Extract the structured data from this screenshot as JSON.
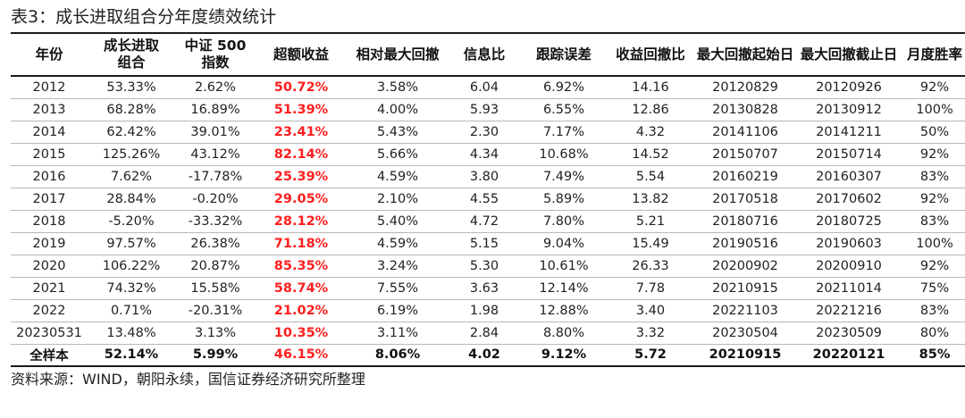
{
  "title": "表3：成长进取组合分年度绩效统计",
  "headers": [
    [
      "年份"
    ],
    [
      "成长进取",
      "组合"
    ],
    [
      "中证 500",
      "指数"
    ],
    [
      "超额收益"
    ],
    [
      "相对最大回撤"
    ],
    [
      "信息比"
    ],
    [
      "跟踪误差"
    ],
    [
      "收益回撤比"
    ],
    [
      "最大回撤起始日"
    ],
    [
      "最大回撤截止日"
    ],
    [
      "月度胜率"
    ]
  ],
  "rows": [
    [
      "2012",
      "53.33%",
      "2.62%",
      "50.72%",
      "3.58%",
      "6.04",
      "6.92%",
      "14.16",
      "20120829",
      "20120926",
      "92%"
    ],
    [
      "2013",
      "68.28%",
      "16.89%",
      "51.39%",
      "4.00%",
      "5.93",
      "6.55%",
      "12.86",
      "20130828",
      "20130912",
      "100%"
    ],
    [
      "2014",
      "62.42%",
      "39.01%",
      "23.41%",
      "5.43%",
      "2.30",
      "7.17%",
      "4.32",
      "20141106",
      "20141211",
      "50%"
    ],
    [
      "2015",
      "125.26%",
      "43.12%",
      "82.14%",
      "5.66%",
      "4.34",
      "10.68%",
      "14.52",
      "20150707",
      "20150714",
      "92%"
    ],
    [
      "2016",
      "7.62%",
      "-17.78%",
      "25.39%",
      "4.59%",
      "3.80",
      "7.49%",
      "5.54",
      "20160219",
      "20160307",
      "83%"
    ],
    [
      "2017",
      "28.84%",
      "-0.20%",
      "29.05%",
      "2.10%",
      "4.55",
      "5.89%",
      "13.82",
      "20170518",
      "20170602",
      "92%"
    ],
    [
      "2018",
      "-5.20%",
      "-33.32%",
      "28.12%",
      "5.40%",
      "4.72",
      "7.80%",
      "5.21",
      "20180716",
      "20180725",
      "83%"
    ],
    [
      "2019",
      "97.57%",
      "26.38%",
      "71.18%",
      "4.59%",
      "5.15",
      "9.04%",
      "15.49",
      "20190516",
      "20190603",
      "100%"
    ],
    [
      "2020",
      "106.22%",
      "20.87%",
      "85.35%",
      "3.24%",
      "5.30",
      "10.61%",
      "26.33",
      "20200902",
      "20200910",
      "92%"
    ],
    [
      "2021",
      "74.32%",
      "15.58%",
      "58.74%",
      "7.55%",
      "3.63",
      "12.14%",
      "7.78",
      "20210915",
      "20211014",
      "75%"
    ],
    [
      "2022",
      "0.71%",
      "-20.31%",
      "21.02%",
      "6.19%",
      "1.98",
      "12.88%",
      "3.40",
      "20221103",
      "20221216",
      "83%"
    ],
    [
      "20230531",
      "13.48%",
      "3.13%",
      "10.35%",
      "3.11%",
      "2.84",
      "8.80%",
      "3.32",
      "20230504",
      "20230509",
      "80%"
    ]
  ],
  "total": [
    "全样本",
    "52.14%",
    "5.99%",
    "46.15%",
    "8.06%",
    "4.02",
    "9.12%",
    "5.72",
    "20210915",
    "20220121",
    "85%"
  ],
  "highlight_column_index": 3,
  "colors": {
    "highlight": "#ff1e1e",
    "text": "#222222",
    "rule": "#1a1a1a",
    "row_line": "#b8b8b8"
  },
  "source": "资料来源：WIND，朝阳永续，国信证券经济研究所整理"
}
